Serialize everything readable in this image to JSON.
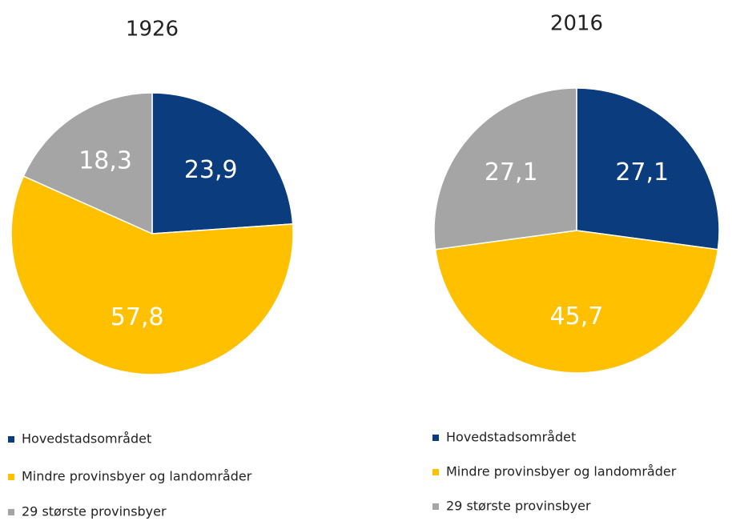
{
  "chart_data": [
    {
      "type": "pie",
      "title": "1926",
      "categories": [
        "Hovedstadsområdet",
        "Mindre provinsbyer og landområder",
        "29 største provinsbyer"
      ],
      "values": [
        23.9,
        57.8,
        18.3
      ],
      "value_labels": [
        "23,9",
        "57,8",
        "18,3"
      ],
      "colors": [
        "#0b3c7d",
        "#ffc000",
        "#a5a5a5"
      ]
    },
    {
      "type": "pie",
      "title": "2016",
      "categories": [
        "Hovedstadsområdet",
        "Mindre provinsbyer og landområder",
        "29 største provinsbyer"
      ],
      "values": [
        27.1,
        45.7,
        27.1
      ],
      "value_labels": [
        "27,1",
        "45,7",
        "27,1"
      ],
      "colors": [
        "#0b3c7d",
        "#ffc000",
        "#a5a5a5"
      ]
    }
  ]
}
